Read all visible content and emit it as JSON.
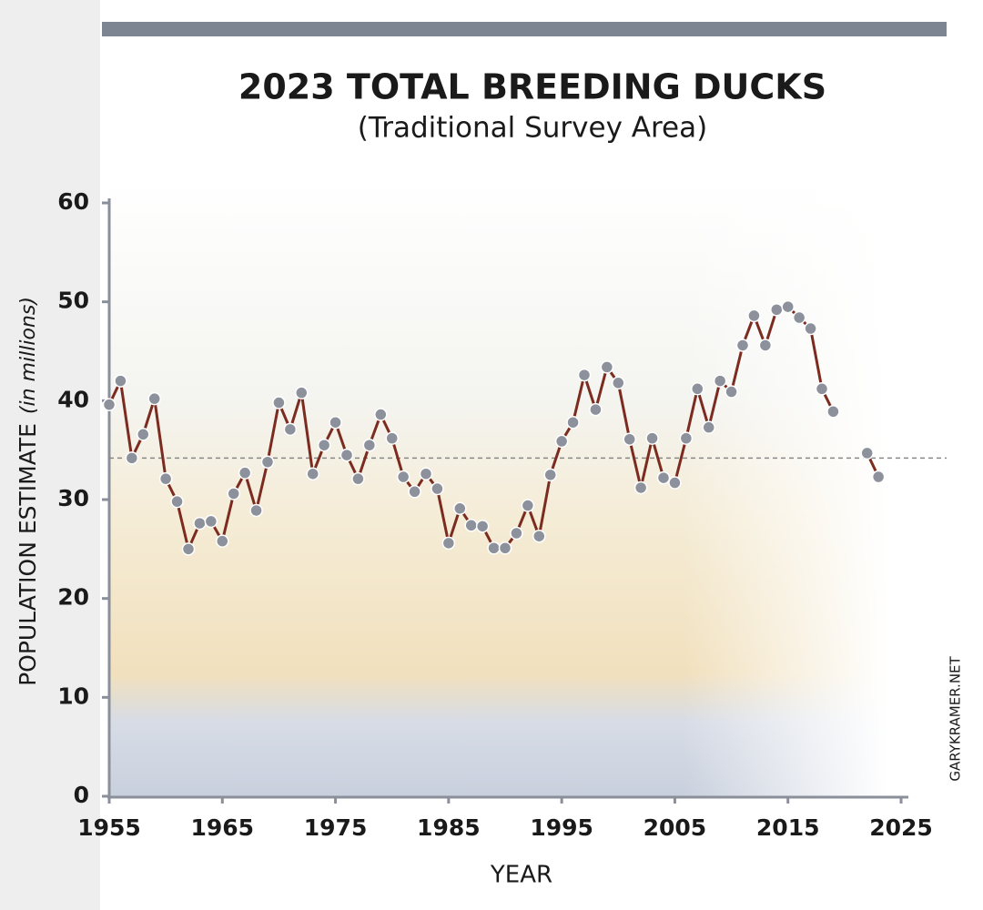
{
  "chart_data": {
    "type": "line",
    "title": "2023 TOTAL BREEDING DUCKS",
    "subtitle": "(Traditional Survey Area)",
    "x_label": "YEAR",
    "y_label": "POPULATION ESTIMATE",
    "y_label_note": "(in millions)",
    "watermark": "GARYKRAMER.NET",
    "x": [
      1955,
      1956,
      1957,
      1958,
      1959,
      1960,
      1961,
      1962,
      1963,
      1964,
      1965,
      1966,
      1967,
      1968,
      1969,
      1970,
      1971,
      1972,
      1973,
      1974,
      1975,
      1976,
      1977,
      1978,
      1979,
      1980,
      1981,
      1982,
      1983,
      1984,
      1985,
      1986,
      1987,
      1988,
      1989,
      1990,
      1991,
      1992,
      1993,
      1994,
      1995,
      1996,
      1997,
      1998,
      1999,
      2000,
      2001,
      2002,
      2003,
      2004,
      2005,
      2006,
      2007,
      2008,
      2009,
      2010,
      2011,
      2012,
      2013,
      2014,
      2015,
      2016,
      2017,
      2018,
      2019,
      2020,
      2021,
      2022,
      2023
    ],
    "values": [
      39.6,
      42.0,
      34.2,
      36.6,
      40.2,
      32.1,
      29.8,
      25.0,
      27.6,
      27.8,
      25.8,
      30.6,
      32.7,
      28.9,
      33.8,
      39.8,
      37.1,
      40.8,
      32.6,
      35.5,
      37.8,
      34.5,
      32.1,
      35.5,
      38.6,
      36.2,
      32.3,
      30.8,
      32.6,
      31.1,
      25.6,
      29.1,
      27.4,
      27.3,
      25.1,
      25.1,
      26.6,
      29.4,
      26.3,
      32.5,
      35.9,
      37.8,
      42.6,
      39.1,
      43.4,
      41.8,
      36.1,
      31.2,
      36.2,
      32.2,
      31.7,
      36.2,
      41.2,
      37.3,
      42.0,
      40.9,
      45.6,
      48.6,
      45.6,
      49.2,
      49.5,
      48.4,
      47.3,
      41.2,
      38.9,
      null,
      null,
      34.7,
      32.3
    ],
    "color": "#7b2b20",
    "marker_color": "#8c919c",
    "reference_line": 34.2,
    "xlim": [
      1955,
      2025
    ],
    "xticks": [
      1955,
      1965,
      1975,
      1985,
      1995,
      2005,
      2015,
      2025
    ],
    "ylim": [
      0,
      60
    ],
    "yticks": [
      0,
      10,
      20,
      30,
      40,
      50,
      60
    ]
  }
}
